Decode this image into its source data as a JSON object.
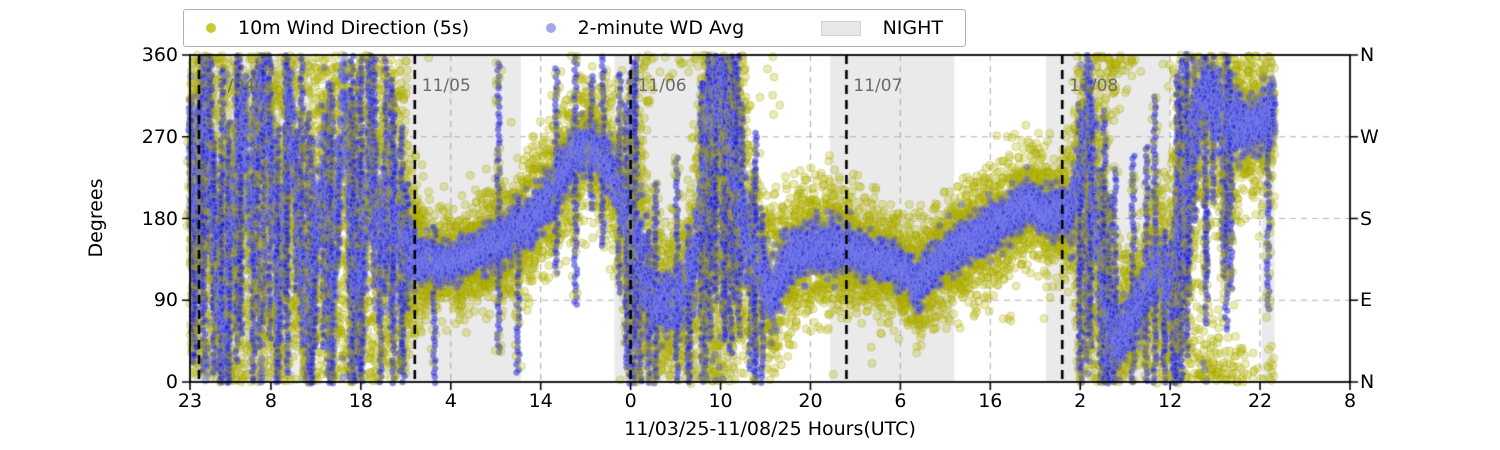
{
  "legend": {
    "items": [
      {
        "label": "10m Wind Direction (5s)",
        "marker": "dot",
        "color": "#c9ca35"
      },
      {
        "label": "2-minute WD Avg",
        "marker": "dot",
        "color": "#a3a8ec"
      },
      {
        "label": "NIGHT",
        "marker": "patch",
        "color": "#e7e7e7"
      }
    ]
  },
  "colors": {
    "night_band": "#eaeaea",
    "grid": "#b3b3b3",
    "spine": "#000000",
    "day_line": "#000000",
    "day_label": "#6b6b6b",
    "wind_fill": "rgba(187,187,10,0.30)",
    "wind_stroke": "rgba(150,150,0,0.28)",
    "avg_fill": "rgba(25,25,205,0.26)",
    "avg_stroke": "rgba(130,135,238,0.50)",
    "burst_fill": "rgba(20,20,200,0.50)"
  },
  "chart_data": {
    "type": "scatter",
    "title": "",
    "xlabel": "11/03/25-11/08/25  Hours(UTC)",
    "ylabel": "Degrees",
    "ylim": [
      0,
      360
    ],
    "yticks": [
      0,
      90,
      180,
      270,
      360
    ],
    "right_axis_labels": [
      {
        "deg": 0,
        "label": "N"
      },
      {
        "deg": 90,
        "label": "E"
      },
      {
        "deg": 180,
        "label": "S"
      },
      {
        "deg": 270,
        "label": "W"
      },
      {
        "deg": 360,
        "label": "N"
      }
    ],
    "x_range_hours": [
      0,
      129
    ],
    "x_ticks": [
      {
        "h": 0,
        "label": "23"
      },
      {
        "h": 9,
        "label": "8"
      },
      {
        "h": 19,
        "label": "18"
      },
      {
        "h": 29,
        "label": "4"
      },
      {
        "h": 39,
        "label": "14"
      },
      {
        "h": 49,
        "label": "0"
      },
      {
        "h": 59,
        "label": "10"
      },
      {
        "h": 69,
        "label": "20"
      },
      {
        "h": 79,
        "label": "6"
      },
      {
        "h": 89,
        "label": "16"
      },
      {
        "h": 99,
        "label": "2"
      },
      {
        "h": 109,
        "label": "12"
      },
      {
        "h": 119,
        "label": "22"
      },
      {
        "h": 129,
        "label": "8"
      }
    ],
    "day_lines": [
      {
        "h": 1,
        "label": "11/04"
      },
      {
        "h": 25,
        "label": "11/05"
      },
      {
        "h": 49,
        "label": "11/06"
      },
      {
        "h": 73,
        "label": "11/07"
      },
      {
        "h": 97,
        "label": "11/08"
      }
    ],
    "night_bands_hours": [
      [
        0,
        13.6
      ],
      [
        23.2,
        36.8
      ],
      [
        47.2,
        60.9
      ],
      [
        71.2,
        85.0
      ],
      [
        95.2,
        109.0
      ],
      [
        119.2,
        120.6
      ]
    ],
    "data_end_hour": 120.6,
    "series": [
      {
        "name": "10m Wind Direction (5s)",
        "cadence_seconds": 5,
        "marker_px": 8,
        "color": "#bbbb0a"
      },
      {
        "name": "2-minute WD Avg",
        "cadence_seconds": 120,
        "marker_px": 7,
        "color": "#1919cd"
      }
    ],
    "trajectory_t_dir_spread_burst": [
      [
        0,
        270,
        60,
        0.45
      ],
      [
        1,
        200,
        70,
        0.5
      ],
      [
        2,
        330,
        70,
        0.55
      ],
      [
        3,
        120,
        60,
        0.5
      ],
      [
        4,
        40,
        50,
        0.45
      ],
      [
        5,
        220,
        70,
        0.5
      ],
      [
        6,
        300,
        60,
        0.45
      ],
      [
        7,
        150,
        70,
        0.5
      ],
      [
        8,
        350,
        60,
        0.45
      ],
      [
        9,
        250,
        60,
        0.4
      ],
      [
        10,
        80,
        60,
        0.45
      ],
      [
        11,
        300,
        60,
        0.5
      ],
      [
        12,
        200,
        70,
        0.45
      ],
      [
        13,
        60,
        50,
        0.4
      ],
      [
        14,
        150,
        70,
        0.45
      ],
      [
        15,
        250,
        70,
        0.5
      ],
      [
        16,
        100,
        60,
        0.5
      ],
      [
        17,
        320,
        60,
        0.5
      ],
      [
        18,
        180,
        80,
        0.55
      ],
      [
        19,
        80,
        60,
        0.5
      ],
      [
        20,
        260,
        70,
        0.55
      ],
      [
        21,
        140,
        70,
        0.5
      ],
      [
        22,
        200,
        80,
        0.5
      ],
      [
        23,
        170,
        70,
        0.45
      ],
      [
        24,
        150,
        50,
        0.3
      ],
      [
        25,
        140,
        28,
        0.12
      ],
      [
        26,
        132,
        20,
        0.04
      ],
      [
        28,
        130,
        18,
        0.02
      ],
      [
        30,
        135,
        18,
        0.02
      ],
      [
        32,
        142,
        20,
        0.02
      ],
      [
        34,
        152,
        22,
        0.02
      ],
      [
        36,
        162,
        22,
        0.03
      ],
      [
        38,
        178,
        24,
        0.03
      ],
      [
        40,
        205,
        26,
        0.04
      ],
      [
        42,
        238,
        24,
        0.03
      ],
      [
        43.5,
        257,
        22,
        0.03
      ],
      [
        45,
        256,
        22,
        0.04
      ],
      [
        46.5,
        238,
        26,
        0.06
      ],
      [
        48,
        205,
        30,
        0.15
      ],
      [
        49,
        180,
        40,
        0.35
      ],
      [
        50,
        140,
        55,
        0.5
      ],
      [
        51,
        95,
        45,
        0.3
      ],
      [
        52,
        90,
        32,
        0.12
      ],
      [
        53,
        88,
        28,
        0.08
      ],
      [
        54,
        85,
        28,
        0.08
      ],
      [
        55,
        95,
        32,
        0.12
      ],
      [
        56,
        125,
        45,
        0.3
      ],
      [
        57,
        210,
        60,
        0.45
      ],
      [
        58,
        300,
        55,
        0.45
      ],
      [
        59,
        320,
        55,
        0.5
      ],
      [
        60,
        280,
        65,
        0.55
      ],
      [
        61,
        210,
        70,
        0.5
      ],
      [
        62,
        155,
        45,
        0.25
      ],
      [
        63,
        140,
        30,
        0.08
      ],
      [
        64,
        115,
        30,
        0.06
      ],
      [
        65,
        92,
        35,
        0.1
      ],
      [
        66,
        128,
        30,
        0.05
      ],
      [
        68,
        145,
        26,
        0.02
      ],
      [
        70,
        150,
        24,
        0.02
      ],
      [
        72,
        150,
        22,
        0.02
      ],
      [
        74,
        142,
        20,
        0.01
      ],
      [
        76,
        136,
        19,
        0.01
      ],
      [
        78,
        130,
        19,
        0.01
      ],
      [
        80,
        120,
        20,
        0.02
      ],
      [
        81,
        102,
        22,
        0.03
      ],
      [
        82,
        124,
        20,
        0.02
      ],
      [
        84,
        140,
        20,
        0.01
      ],
      [
        86,
        152,
        21,
        0.01
      ],
      [
        88,
        164,
        22,
        0.01
      ],
      [
        90,
        175,
        22,
        0.01
      ],
      [
        92,
        186,
        22,
        0.02
      ],
      [
        93,
        200,
        21,
        0.02
      ],
      [
        94,
        196,
        20,
        0.02
      ],
      [
        95,
        187,
        21,
        0.02
      ],
      [
        96,
        186,
        22,
        0.03
      ],
      [
        97,
        190,
        24,
        0.05
      ],
      [
        98,
        186,
        28,
        0.12
      ],
      [
        99,
        225,
        60,
        0.5
      ],
      [
        100,
        300,
        65,
        0.55
      ],
      [
        101,
        160,
        80,
        0.55
      ],
      [
        102,
        62,
        50,
        0.3
      ],
      [
        103,
        42,
        32,
        0.1
      ],
      [
        104,
        56,
        26,
        0.05
      ],
      [
        105,
        76,
        26,
        0.05
      ],
      [
        106,
        96,
        27,
        0.08
      ],
      [
        107,
        116,
        28,
        0.12
      ],
      [
        108,
        126,
        32,
        0.18
      ],
      [
        109,
        102,
        42,
        0.3
      ],
      [
        110,
        150,
        60,
        0.45
      ],
      [
        111,
        225,
        60,
        0.4
      ],
      [
        112,
        292,
        48,
        0.35
      ],
      [
        113,
        322,
        42,
        0.3
      ],
      [
        114,
        302,
        42,
        0.32
      ],
      [
        115,
        282,
        46,
        0.38
      ],
      [
        116,
        292,
        40,
        0.3
      ],
      [
        117,
        282,
        32,
        0.2
      ],
      [
        118,
        286,
        26,
        0.15
      ],
      [
        119,
        282,
        26,
        0.2
      ],
      [
        120,
        292,
        30,
        0.3
      ],
      [
        120.6,
        302,
        30,
        0.2
      ]
    ]
  }
}
